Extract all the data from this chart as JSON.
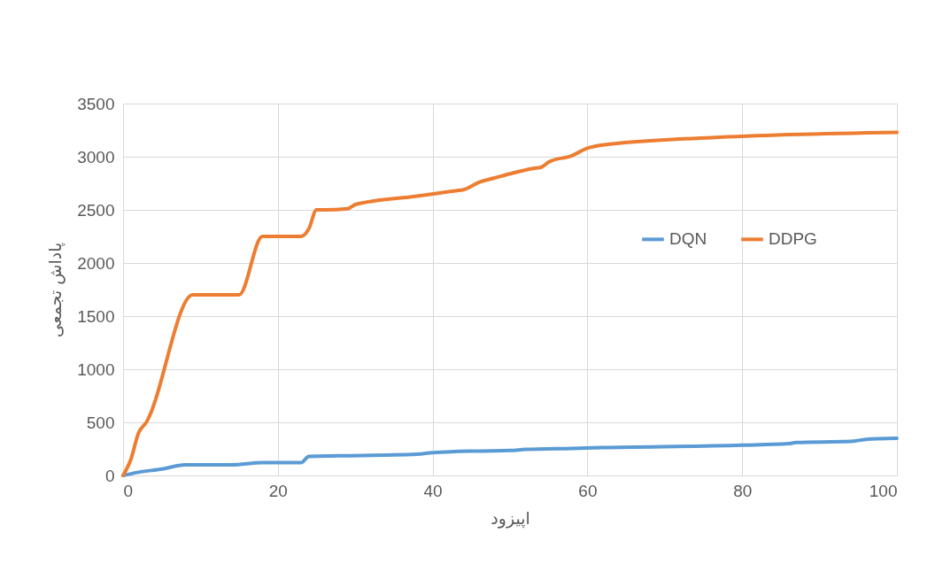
{
  "chart_data": {
    "type": "line",
    "xlabel": "اپیزود",
    "ylabel": "پاداش تجمعی",
    "xlim": [
      0,
      100
    ],
    "ylim": [
      0,
      3500
    ],
    "xticks": [
      0,
      20,
      40,
      60,
      80,
      100
    ],
    "yticks": [
      0,
      500,
      1000,
      1500,
      2000,
      2500,
      3000,
      3500
    ],
    "grid": true,
    "legend": "right",
    "line_style": "solid",
    "marker": "none",
    "series": [
      {
        "name": "DQN",
        "color": "#5b9bd5",
        "x": [
          0,
          2,
          5,
          8,
          14,
          18,
          23,
          24,
          28,
          38,
          40,
          46,
          50,
          52,
          58,
          62,
          80,
          86,
          87,
          94,
          96,
          100
        ],
        "values": [
          0,
          30,
          60,
          100,
          100,
          120,
          120,
          180,
          185,
          200,
          215,
          230,
          235,
          245,
          255,
          262,
          285,
          300,
          310,
          320,
          340,
          350
        ]
      },
      {
        "name": "DDPG",
        "color": "#ed7d31",
        "x": [
          0,
          1,
          2,
          3,
          9,
          14,
          15,
          18,
          23,
          24,
          25,
          26,
          29,
          30,
          38,
          43,
          44,
          46,
          48,
          50,
          53,
          54,
          55,
          58,
          60,
          62,
          76,
          100
        ],
        "values": [
          0,
          150,
          400,
          500,
          1700,
          1700,
          1700,
          2250,
          2250,
          2320,
          2500,
          2500,
          2510,
          2550,
          2630,
          2680,
          2690,
          2760,
          2800,
          2840,
          2890,
          2900,
          2950,
          3010,
          3080,
          3110,
          3180,
          3230
        ]
      }
    ]
  }
}
